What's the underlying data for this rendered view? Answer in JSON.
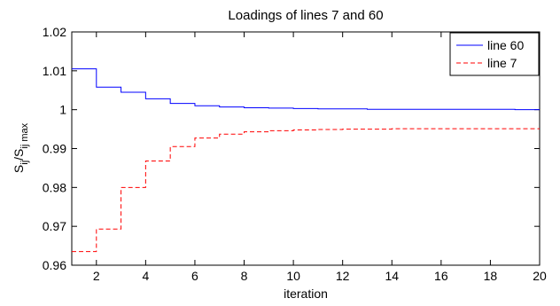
{
  "chart_data": {
    "type": "line",
    "title": "Loadings of lines 7 and 60",
    "xlabel": "iteration",
    "ylabel": "S_ij / S_ij max",
    "ylabel_parts": {
      "main": "S",
      "sub1": "ij",
      "sep": "/S",
      "sub2": "ij max"
    },
    "xlim": [
      1,
      20
    ],
    "ylim": [
      0.96,
      1.02
    ],
    "x_ticks": [
      2,
      4,
      6,
      8,
      10,
      12,
      14,
      16,
      18,
      20
    ],
    "x_tick_labels": [
      "2",
      "4",
      "6",
      "8",
      "10",
      "12",
      "14",
      "16",
      "18",
      "20"
    ],
    "y_ticks": [
      0.96,
      0.97,
      0.98,
      0.99,
      1.0,
      1.01,
      1.02
    ],
    "y_tick_labels": [
      "0.96",
      "0.97",
      "0.98",
      "0.99",
      "1",
      "1.01",
      "1.02"
    ],
    "grid": false,
    "legend_position": "top-right",
    "step": "post",
    "x": [
      1,
      2,
      3,
      4,
      5,
      6,
      7,
      8,
      9,
      10,
      11,
      12,
      13,
      14,
      15,
      16,
      17,
      18,
      19,
      20
    ],
    "series": [
      {
        "name": "line 60",
        "color": "#0000ff",
        "dash": "solid",
        "values": [
          1.0105,
          1.0058,
          1.0045,
          1.0028,
          1.0016,
          1.001,
          1.0007,
          1.0005,
          1.0004,
          1.0003,
          1.0002,
          1.0002,
          1.0001,
          1.0001,
          1.0001,
          1.0001,
          1.0001,
          1.0001,
          1.0,
          1.0
        ]
      },
      {
        "name": "line 7",
        "color": "#ff0000",
        "dash": "dashed",
        "values": [
          0.9635,
          0.9693,
          0.98,
          0.9868,
          0.9905,
          0.9927,
          0.9937,
          0.9943,
          0.9946,
          0.9948,
          0.9949,
          0.995,
          0.995,
          0.9951,
          0.9951,
          0.9951,
          0.9951,
          0.9951,
          0.9951,
          0.9951
        ]
      }
    ]
  }
}
